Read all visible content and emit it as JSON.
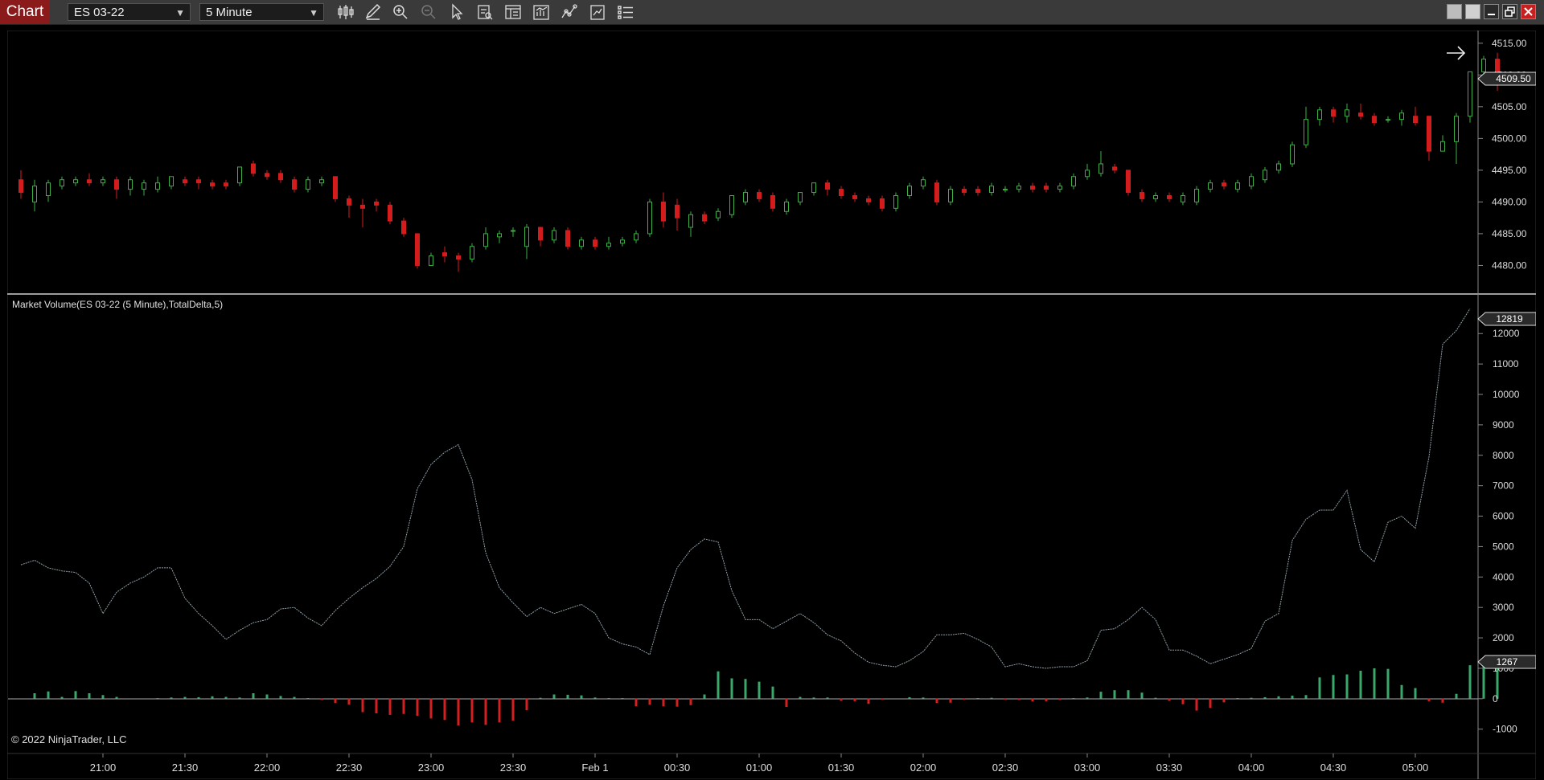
{
  "toolbar": {
    "app_title": "Chart",
    "instrument": "ES 03-22",
    "interval": "5 Minute",
    "tools": [
      "bar-type-icon",
      "pencil-icon",
      "zoom-in-icon",
      "zoom-out-icon",
      "pointer-icon",
      "data-box-icon",
      "properties-icon",
      "indicators-icon",
      "strategies-icon",
      "chart-trader-icon",
      "list-icon"
    ]
  },
  "window_buttons": [
    "tile-icon",
    "restore-icon",
    "minimize-icon",
    "maximize-icon",
    "close-icon"
  ],
  "colors": {
    "up": "#3cb043",
    "down": "#d41c1c",
    "line": "#8fa0a8",
    "delta_up": "#3aa86a",
    "delta_down": "#d42020",
    "grid": "#222"
  },
  "chart_data": [
    {
      "type": "candlestick",
      "ylim": [
        4475.5,
        4517
      ],
      "y_ticks": [
        "4515.00",
        "4510.00",
        "4505.00",
        "4500.00",
        "4495.00",
        "4490.00",
        "4485.00",
        "4480.00"
      ],
      "last_price_label": "4509.50",
      "candles": [
        [
          4493.5,
          4491.5,
          4495,
          4490.5
        ],
        [
          4490,
          4492.5,
          4493.5,
          4488.5
        ],
        [
          4491,
          4493,
          4493.5,
          4490
        ],
        [
          4492.5,
          4493.5,
          4494,
          4492
        ],
        [
          4493,
          4493.5,
          4494,
          4492.5
        ],
        [
          4493.5,
          4493,
          4494.5,
          4492.5
        ],
        [
          4493,
          4493.5,
          4494,
          4492.5
        ],
        [
          4493.5,
          4492,
          4494,
          4490.5
        ],
        [
          4492,
          4493.5,
          4494,
          4491
        ],
        [
          4492,
          4493,
          4493.5,
          4491
        ],
        [
          4492,
          4493,
          4494,
          4491.5
        ],
        [
          4492.5,
          4494,
          4494,
          4492
        ],
        [
          4493.5,
          4493,
          4494,
          4492.5
        ],
        [
          4493.5,
          4493,
          4494,
          4492
        ],
        [
          4493,
          4492.5,
          4493.5,
          4492
        ],
        [
          4493,
          4492.5,
          4493.5,
          4492
        ],
        [
          4493,
          4495.5,
          4495.5,
          4492.5
        ],
        [
          4496,
          4494.5,
          4496.5,
          4494
        ],
        [
          4494.5,
          4494,
          4495,
          4493.5
        ],
        [
          4494.5,
          4493.5,
          4495,
          4493
        ],
        [
          4493.5,
          4492,
          4494,
          4491.5
        ],
        [
          4492,
          4493.5,
          4494,
          4491.5
        ],
        [
          4493,
          4493.5,
          4494,
          4492.5
        ],
        [
          4494,
          4490.5,
          4494,
          4490
        ],
        [
          4490.5,
          4489.5,
          4491,
          4487.5
        ],
        [
          4489.5,
          4489,
          4490.5,
          4486
        ],
        [
          4490,
          4489.5,
          4490.5,
          4488.5
        ],
        [
          4489.5,
          4487,
          4490,
          4486.5
        ],
        [
          4487,
          4485,
          4487.5,
          4484.5
        ],
        [
          4485,
          4480,
          4485,
          4479.5
        ],
        [
          4480,
          4481.5,
          4482,
          4480
        ],
        [
          4482,
          4481.5,
          4483,
          4480.5
        ],
        [
          4481.5,
          4481,
          4482,
          4479
        ],
        [
          4481,
          4483,
          4483.5,
          4480.5
        ],
        [
          4483,
          4485,
          4486,
          4482.5
        ],
        [
          4484.5,
          4485,
          4485.5,
          4483.5
        ],
        [
          4485.5,
          4485.5,
          4486,
          4484.5
        ],
        [
          4483,
          4486,
          4486.5,
          4481
        ],
        [
          4486,
          4484,
          4486,
          4483
        ],
        [
          4484,
          4485.5,
          4486,
          4483.5
        ],
        [
          4485.5,
          4483,
          4486,
          4482.5
        ],
        [
          4483,
          4484,
          4484.5,
          4482.5
        ],
        [
          4484,
          4483,
          4484.5,
          4482.5
        ],
        [
          4483,
          4483.5,
          4484.5,
          4482.5
        ],
        [
          4483.5,
          4484,
          4484.5,
          4483
        ],
        [
          4484,
          4485,
          4485.5,
          4483.5
        ],
        [
          4485,
          4490,
          4490.5,
          4484.5
        ],
        [
          4490,
          4487,
          4491.5,
          4486
        ],
        [
          4489.5,
          4487.5,
          4490.5,
          4485.5
        ],
        [
          4486,
          4488,
          4488.5,
          4484.5
        ],
        [
          4488,
          4487,
          4488.5,
          4486.5
        ],
        [
          4487.5,
          4488.5,
          4489,
          4487
        ],
        [
          4488,
          4491,
          4491,
          4487.5
        ],
        [
          4490,
          4491.5,
          4492,
          4489.5
        ],
        [
          4491.5,
          4490.5,
          4492,
          4490
        ],
        [
          4491,
          4489,
          4491.5,
          4488.5
        ],
        [
          4488.5,
          4490,
          4490.5,
          4488
        ],
        [
          4490,
          4491.5,
          4491.5,
          4489.5
        ],
        [
          4491.5,
          4493,
          4493,
          4491
        ],
        [
          4493,
          4492,
          4493.5,
          4491
        ],
        [
          4492,
          4491,
          4492.5,
          4490.5
        ],
        [
          4491,
          4490.5,
          4491.5,
          4490
        ],
        [
          4490.5,
          4490,
          4491,
          4489.5
        ],
        [
          4490.5,
          4489,
          4491,
          4488.5
        ],
        [
          4489,
          4491,
          4491.5,
          4488.5
        ],
        [
          4491,
          4492.5,
          4493,
          4490.5
        ],
        [
          4492.5,
          4493.5,
          4494,
          4492
        ],
        [
          4493,
          4490,
          4493.5,
          4489.5
        ],
        [
          4490,
          4492,
          4492.5,
          4489.5
        ],
        [
          4492,
          4491.5,
          4492.5,
          4491
        ],
        [
          4492,
          4491.5,
          4492.5,
          4491
        ],
        [
          4491.5,
          4492.5,
          4493,
          4491
        ],
        [
          4492,
          4492,
          4492.5,
          4491.5
        ],
        [
          4492,
          4492.5,
          4493,
          4491.5
        ],
        [
          4492.5,
          4492,
          4493,
          4491.5
        ],
        [
          4492.5,
          4492,
          4493,
          4491.5
        ],
        [
          4492,
          4492.5,
          4493,
          4491.5
        ],
        [
          4492.5,
          4494,
          4494.5,
          4492
        ],
        [
          4494,
          4495,
          4496,
          4493.5
        ],
        [
          4494.5,
          4496,
          4498,
          4494
        ],
        [
          4495.5,
          4495,
          4496,
          4494.5
        ],
        [
          4495,
          4491.5,
          4495,
          4491
        ],
        [
          4491.5,
          4490.5,
          4492,
          4490
        ],
        [
          4490.5,
          4491,
          4491.5,
          4490
        ],
        [
          4491,
          4490.5,
          4491.5,
          4490
        ],
        [
          4490,
          4491,
          4491.5,
          4489.5
        ],
        [
          4490,
          4492,
          4492.5,
          4489.5
        ],
        [
          4492,
          4493,
          4493.5,
          4491.5
        ],
        [
          4493,
          4492.5,
          4493.5,
          4492
        ],
        [
          4492,
          4493,
          4493.5,
          4491.5
        ],
        [
          4492.5,
          4494,
          4494.5,
          4492
        ],
        [
          4493.5,
          4495,
          4495.5,
          4493
        ],
        [
          4495,
          4496,
          4496.5,
          4494.5
        ],
        [
          4496,
          4499,
          4499.5,
          4495.5
        ],
        [
          4499,
          4503,
          4505,
          4498.5
        ],
        [
          4503,
          4504.5,
          4505,
          4502
        ],
        [
          4504.5,
          4503.5,
          4505,
          4502.5
        ],
        [
          4503.5,
          4504.5,
          4505.5,
          4502.5
        ],
        [
          4504,
          4503.5,
          4505.5,
          4503
        ],
        [
          4503.5,
          4502.5,
          4504,
          4502
        ],
        [
          4503,
          4503,
          4503.5,
          4502.5
        ],
        [
          4503,
          4504,
          4504.5,
          4502
        ],
        [
          4503.5,
          4502.5,
          4505,
          4502
        ],
        [
          4503.5,
          4498,
          4503.5,
          4496.5
        ],
        [
          4498,
          4499.5,
          4500.5,
          4498
        ],
        [
          4499.5,
          4503.5,
          4504,
          4496
        ],
        [
          4503.5,
          4510.5,
          4510.5,
          4502.5
        ],
        [
          4510.5,
          4512.5,
          4513,
          4510
        ],
        [
          4512.5,
          4509.5,
          4513.5,
          4507.5
        ]
      ]
    },
    {
      "type": "line+bar",
      "title": "Market Volume(ES 03-22 (5 Minute),TotalDelta,5)",
      "ylim": [
        -1800,
        13300
      ],
      "y_ticks": [
        "12000",
        "11000",
        "10000",
        "9000",
        "8000",
        "7000",
        "6000",
        "5000",
        "4000",
        "3000",
        "2000",
        "1000",
        "0",
        "-1000"
      ],
      "last_line_label": "12819",
      "last_bar_label": "1267",
      "line": [
        4400,
        4550,
        4300,
        4200,
        4150,
        3800,
        2800,
        3500,
        3800,
        4000,
        4300,
        4300,
        3300,
        2800,
        2400,
        1950,
        2250,
        2500,
        2600,
        2950,
        3000,
        2650,
        2400,
        2900,
        3300,
        3650,
        3950,
        4350,
        5000,
        6900,
        7700,
        8100,
        8350,
        7200,
        4800,
        3650,
        3150,
        2700,
        3000,
        2800,
        2950,
        3100,
        2800,
        2000,
        1800,
        1700,
        1450,
        3050,
        4300,
        4900,
        5250,
        5150,
        3550,
        2600,
        2600,
        2300,
        2550,
        2800,
        2500,
        2100,
        1900,
        1500,
        1200,
        1100,
        1050,
        1250,
        1550,
        2100,
        2100,
        2150,
        1950,
        1700,
        1050,
        1150,
        1050,
        1000,
        1050,
        1050,
        1250,
        2250,
        2300,
        2600,
        3000,
        2600,
        1600,
        1600,
        1400,
        1150,
        1300,
        1450,
        1650,
        2550,
        2800,
        5200,
        5900,
        6200,
        6200,
        6850,
        4900,
        4500,
        5800,
        6000,
        5600,
        7950,
        11650,
        12100,
        12819
      ],
      "bars": [
        0,
        180,
        240,
        60,
        250,
        180,
        120,
        60,
        0,
        0,
        20,
        40,
        60,
        50,
        80,
        60,
        40,
        180,
        140,
        90,
        60,
        20,
        -40,
        -140,
        -190,
        -440,
        -480,
        -530,
        -500,
        -560,
        -650,
        -700,
        -880,
        -780,
        -860,
        -780,
        -720,
        -380,
        30,
        140,
        130,
        110,
        40,
        20,
        20,
        -250,
        -200,
        -250,
        -260,
        -210,
        140,
        900,
        670,
        650,
        560,
        400,
        -270,
        60,
        40,
        40,
        -70,
        -80,
        -170,
        -30,
        0,
        50,
        40,
        -140,
        -130,
        -30,
        20,
        30,
        -30,
        -40,
        -90,
        -80,
        -40,
        20,
        40,
        230,
        280,
        280,
        200,
        30,
        -70,
        -180,
        -390,
        -300,
        -120,
        20,
        30,
        50,
        80,
        100,
        120,
        700,
        780,
        800,
        920,
        1000,
        980,
        450,
        350,
        -80,
        -130,
        160,
        1100,
        1150,
        1267
      ]
    }
  ],
  "x_ticks": [
    "21:00",
    "21:30",
    "22:00",
    "22:30",
    "23:00",
    "23:30",
    "Feb 1",
    "00:30",
    "01:00",
    "01:30",
    "02:00",
    "02:30",
    "03:00",
    "03:30",
    "04:00",
    "04:30",
    "05:00"
  ],
  "copyright": "© 2022 NinjaTrader, LLC"
}
